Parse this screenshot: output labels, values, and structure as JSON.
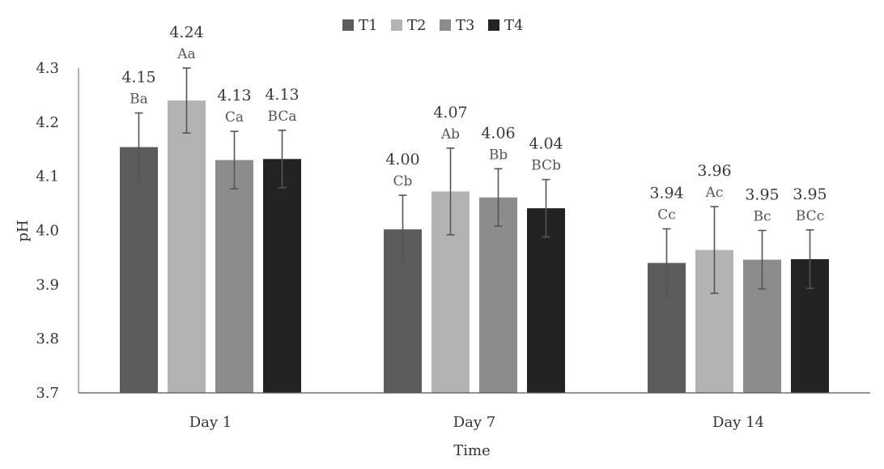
{
  "chart_data": {
    "type": "bar",
    "title": "",
    "xlabel": "Time",
    "ylabel": "pH",
    "ylim": [
      3.7,
      4.3
    ],
    "yticks": [
      "3.7",
      "3.8",
      "3.9",
      "4.0",
      "4.1",
      "4.2",
      "4.3"
    ],
    "grid": false,
    "legend_position": "top-center",
    "categories": [
      "Day 1",
      "Day 7",
      "Day 14"
    ],
    "series": [
      {
        "name": "T1",
        "color": "#5c5c5c",
        "values": [
          4.154,
          4.002,
          3.94
        ],
        "errors": [
          0.063,
          0.063,
          0.063
        ],
        "value_labels": [
          "4.15",
          "4.00",
          "3.94"
        ],
        "letters": [
          "Ba",
          "Cb",
          "Cc"
        ]
      },
      {
        "name": "T2",
        "color": "#b3b3b3",
        "values": [
          4.24,
          4.072,
          3.964
        ],
        "errors": [
          0.06,
          0.08,
          0.08
        ],
        "value_labels": [
          "4.24",
          "4.07",
          "3.96"
        ],
        "letters": [
          "Aa",
          "Ab",
          "Ac"
        ]
      },
      {
        "name": "T3",
        "color": "#8c8c8c",
        "values": [
          4.13,
          4.061,
          3.946
        ],
        "errors": [
          0.053,
          0.053,
          0.054
        ],
        "value_labels": [
          "4.13",
          "4.06",
          "3.95"
        ],
        "letters": [
          "Ca",
          "Bb",
          "Bc"
        ]
      },
      {
        "name": "T4",
        "color": "#232323",
        "values": [
          4.132,
          4.041,
          3.947
        ],
        "errors": [
          0.053,
          0.053,
          0.054
        ],
        "value_labels": [
          "4.13",
          "4.04",
          "3.95"
        ],
        "letters": [
          "BCa",
          "BCb",
          "BCc"
        ]
      }
    ]
  }
}
